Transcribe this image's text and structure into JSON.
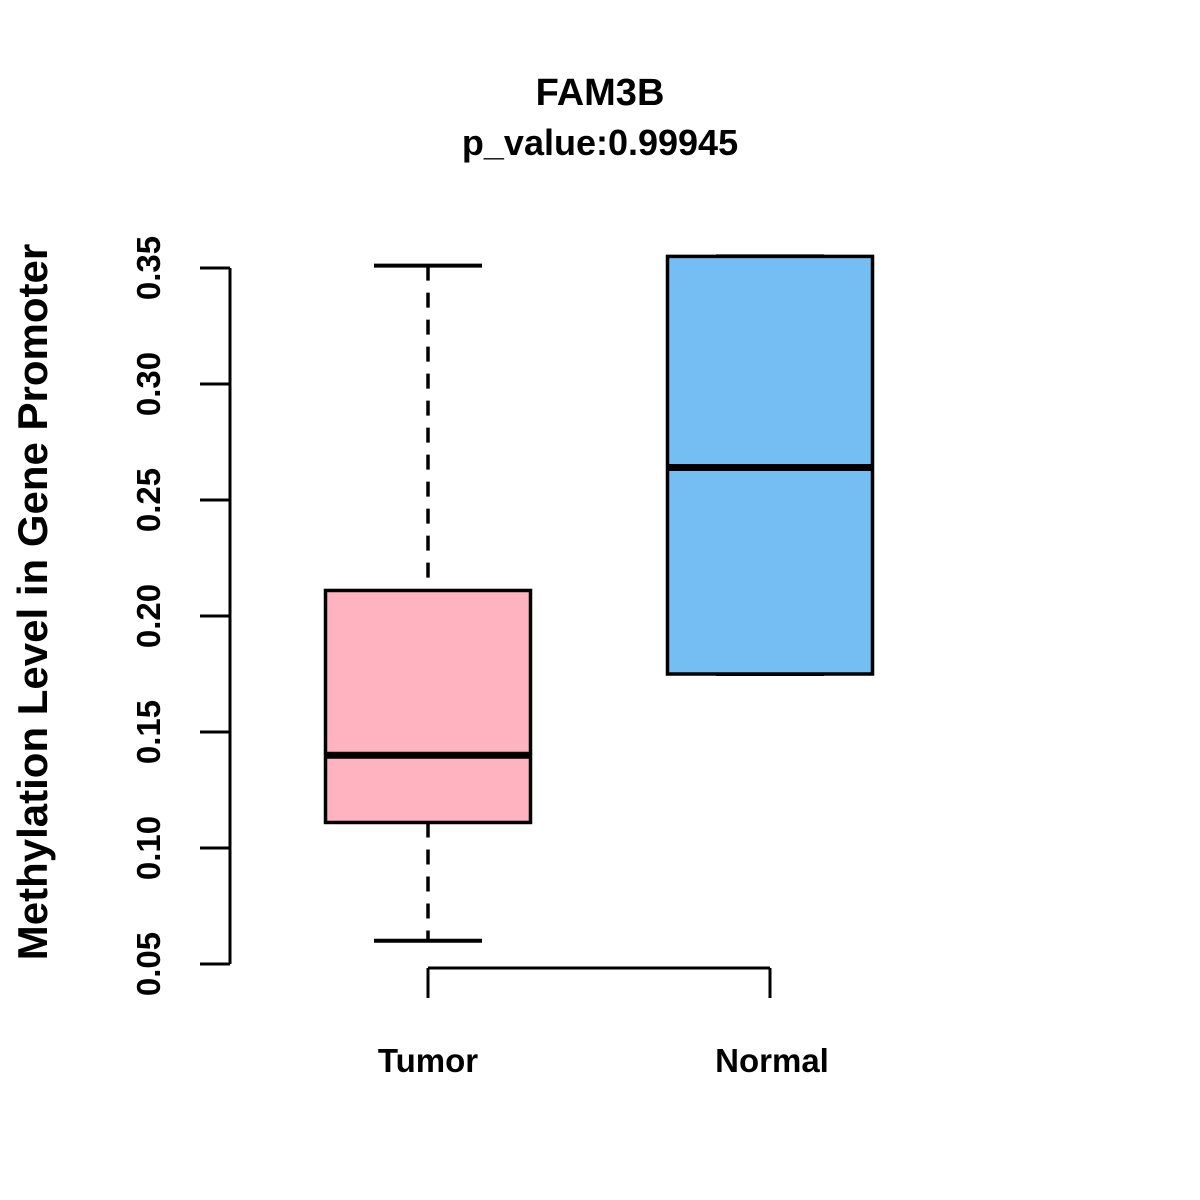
{
  "chart_data": {
    "type": "boxplot",
    "title": "FAM3B",
    "subtitle": "p_value:0.99945",
    "ylabel": "Methylation Level in Gene Promoter",
    "categories": [
      "Tumor",
      "Normal"
    ],
    "yticks": [
      {
        "v": 0.05,
        "label": "0.05"
      },
      {
        "v": 0.1,
        "label": "0.10"
      },
      {
        "v": 0.15,
        "label": "0.15"
      },
      {
        "v": 0.2,
        "label": "0.20"
      },
      {
        "v": 0.25,
        "label": "0.25"
      },
      {
        "v": 0.3,
        "label": "0.30"
      },
      {
        "v": 0.35,
        "label": "0.35"
      }
    ],
    "ylim": [
      0.05,
      0.355
    ],
    "grid": false,
    "legend": "none",
    "series": [
      {
        "name": "Tumor",
        "fill": "#FFB3C1",
        "min": 0.06,
        "q1": 0.111,
        "median": 0.14,
        "q3": 0.211,
        "max": 0.351,
        "whisker_style": "dashed"
      },
      {
        "name": "Normal",
        "fill": "#74BEF3",
        "min": 0.175,
        "q1": 0.175,
        "median": 0.264,
        "q3": 0.355,
        "max": 0.355,
        "whisker_style": "dashed"
      }
    ],
    "stroke_color": "#000000",
    "background_color": "#FFFFFF"
  }
}
